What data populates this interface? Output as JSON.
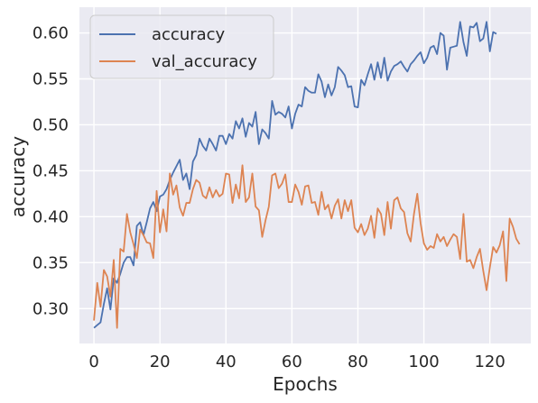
{
  "chart_data": {
    "type": "line",
    "xlabel": "Epochs",
    "ylabel": "accuracy",
    "xlim": [
      -4.4,
      132.4
    ],
    "ylim": [
      0.262,
      0.628
    ],
    "xticks": [
      0,
      20,
      40,
      60,
      80,
      100,
      120
    ],
    "yticks": [
      0.3,
      0.35,
      0.4,
      0.45,
      0.5,
      0.55,
      0.6
    ],
    "grid": true,
    "legend_position": "upper-left",
    "background": "#EAEAF2",
    "series": [
      {
        "name": "accuracy",
        "color": "#4C72B0",
        "values": [
          0.279,
          0.282,
          0.285,
          0.305,
          0.322,
          0.299,
          0.333,
          0.328,
          0.338,
          0.35,
          0.356,
          0.356,
          0.347,
          0.39,
          0.394,
          0.38,
          0.394,
          0.409,
          0.416,
          0.406,
          0.422,
          0.424,
          0.43,
          0.44,
          0.448,
          0.455,
          0.462,
          0.44,
          0.447,
          0.43,
          0.46,
          0.467,
          0.485,
          0.477,
          0.472,
          0.485,
          0.479,
          0.472,
          0.488,
          0.488,
          0.479,
          0.49,
          0.485,
          0.504,
          0.496,
          0.507,
          0.487,
          0.502,
          0.498,
          0.514,
          0.479,
          0.495,
          0.491,
          0.485,
          0.526,
          0.511,
          0.514,
          0.512,
          0.508,
          0.52,
          0.496,
          0.512,
          0.522,
          0.52,
          0.541,
          0.537,
          0.535,
          0.535,
          0.555,
          0.547,
          0.53,
          0.544,
          0.532,
          0.541,
          0.563,
          0.559,
          0.554,
          0.541,
          0.542,
          0.52,
          0.519,
          0.549,
          0.543,
          0.555,
          0.566,
          0.549,
          0.568,
          0.551,
          0.573,
          0.548,
          0.558,
          0.564,
          0.566,
          0.569,
          0.563,
          0.558,
          0.566,
          0.57,
          0.575,
          0.579,
          0.567,
          0.573,
          0.584,
          0.586,
          0.577,
          0.6,
          0.597,
          0.56,
          0.584,
          0.585,
          0.586,
          0.612,
          0.59,
          0.575,
          0.607,
          0.606,
          0.611,
          0.591,
          0.594,
          0.612,
          0.58,
          0.601,
          0.599
        ]
      },
      {
        "name": "val_accuracy",
        "color": "#DD8452",
        "values": [
          0.287,
          0.328,
          0.302,
          0.342,
          0.335,
          0.313,
          0.353,
          0.279,
          0.365,
          0.362,
          0.403,
          0.383,
          0.37,
          0.355,
          0.386,
          0.38,
          0.372,
          0.371,
          0.355,
          0.428,
          0.383,
          0.408,
          0.384,
          0.447,
          0.424,
          0.434,
          0.41,
          0.401,
          0.415,
          0.415,
          0.43,
          0.44,
          0.437,
          0.423,
          0.42,
          0.432,
          0.421,
          0.429,
          0.422,
          0.425,
          0.447,
          0.446,
          0.415,
          0.435,
          0.42,
          0.456,
          0.416,
          0.421,
          0.447,
          0.411,
          0.407,
          0.378,
          0.396,
          0.411,
          0.445,
          0.447,
          0.431,
          0.436,
          0.446,
          0.416,
          0.416,
          0.435,
          0.427,
          0.413,
          0.433,
          0.434,
          0.415,
          0.416,
          0.402,
          0.427,
          0.408,
          0.413,
          0.398,
          0.412,
          0.419,
          0.398,
          0.418,
          0.406,
          0.418,
          0.388,
          0.383,
          0.392,
          0.38,
          0.387,
          0.401,
          0.377,
          0.409,
          0.403,
          0.38,
          0.416,
          0.387,
          0.418,
          0.421,
          0.409,
          0.405,
          0.382,
          0.373,
          0.403,
          0.425,
          0.393,
          0.371,
          0.364,
          0.368,
          0.366,
          0.381,
          0.373,
          0.378,
          0.368,
          0.375,
          0.381,
          0.378,
          0.354,
          0.403,
          0.351,
          0.353,
          0.344,
          0.356,
          0.365,
          0.341,
          0.32,
          0.345,
          0.367,
          0.361,
          0.369,
          0.384,
          0.33,
          0.398,
          0.389,
          0.376,
          0.37
        ]
      }
    ]
  }
}
